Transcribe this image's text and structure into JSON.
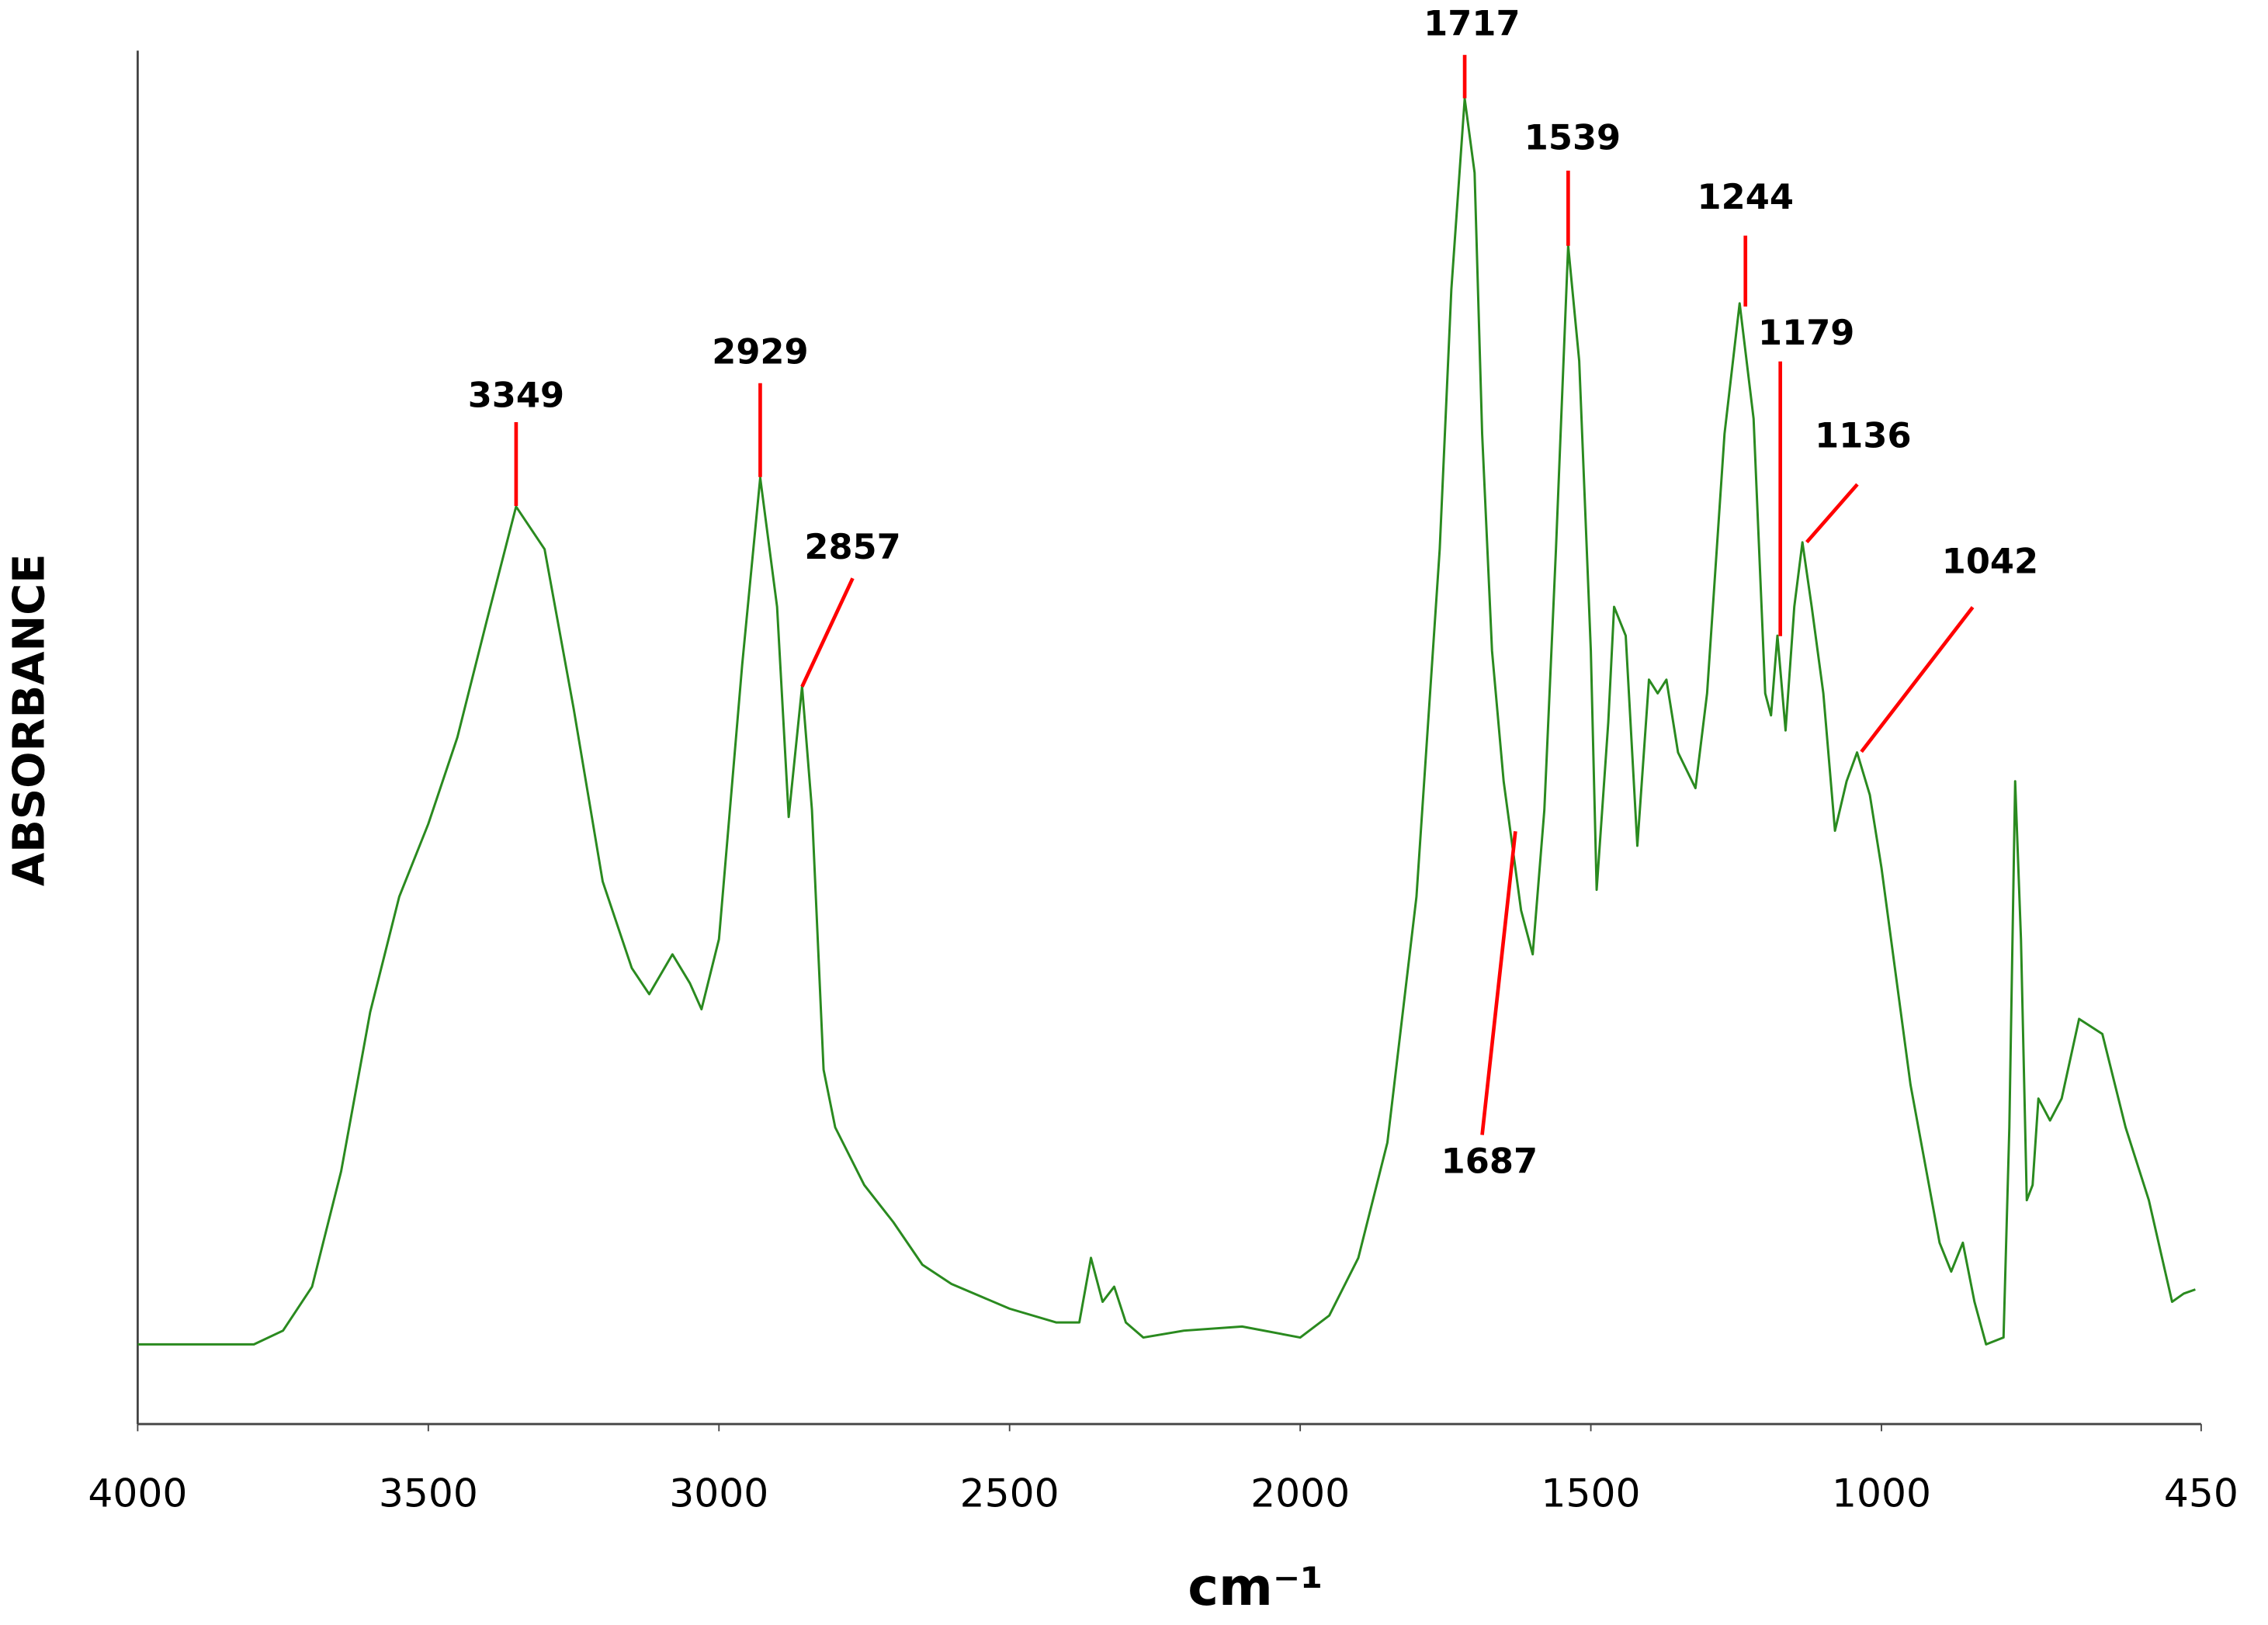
{
  "chart_data": {
    "type": "line",
    "x_label": "cm⁻¹",
    "y_label": "ABSORBANCE",
    "xlim": [
      4000,
      450
    ],
    "xticks": [
      4000,
      3500,
      3000,
      2500,
      2000,
      1500,
      1000,
      450
    ],
    "ylim": [
      0,
      1
    ],
    "color": "#2a8a1f",
    "annotation_color": "#ff0000",
    "x": [
      4000,
      3800,
      3750,
      3700,
      3650,
      3600,
      3550,
      3500,
      3450,
      3400,
      3349,
      3300,
      3250,
      3200,
      3150,
      3120,
      3080,
      3050,
      3030,
      3000,
      2960,
      2929,
      2900,
      2880,
      2857,
      2840,
      2820,
      2800,
      2750,
      2700,
      2650,
      2600,
      2500,
      2420,
      2380,
      2360,
      2340,
      2320,
      2300,
      2270,
      2200,
      2100,
      2000,
      1950,
      1900,
      1850,
      1800,
      1760,
      1740,
      1717,
      1700,
      1687,
      1670,
      1650,
      1620,
      1600,
      1580,
      1560,
      1539,
      1520,
      1500,
      1490,
      1470,
      1460,
      1440,
      1420,
      1400,
      1385,
      1370,
      1350,
      1320,
      1300,
      1270,
      1244,
      1220,
      1200,
      1190,
      1179,
      1165,
      1150,
      1136,
      1120,
      1100,
      1080,
      1060,
      1042,
      1020,
      1000,
      950,
      900,
      880,
      860,
      840,
      820,
      790,
      780,
      770,
      760,
      750,
      740,
      730,
      710,
      690,
      660,
      620,
      580,
      540,
      500,
      480,
      460
    ],
    "values": [
      0.058,
      0.058,
      0.068,
      0.1,
      0.184,
      0.3,
      0.384,
      0.437,
      0.5,
      0.584,
      0.668,
      0.637,
      0.521,
      0.395,
      0.332,
      0.313,
      0.342,
      0.321,
      0.302,
      0.353,
      0.553,
      0.689,
      0.595,
      0.442,
      0.537,
      0.447,
      0.258,
      0.216,
      0.174,
      0.147,
      0.116,
      0.102,
      0.084,
      0.074,
      0.074,
      0.121,
      0.089,
      0.1,
      0.074,
      0.063,
      0.068,
      0.071,
      0.063,
      0.079,
      0.121,
      0.205,
      0.384,
      0.637,
      0.826,
      0.965,
      0.911,
      0.721,
      0.563,
      0.468,
      0.374,
      0.342,
      0.447,
      0.637,
      0.858,
      0.774,
      0.563,
      0.389,
      0.511,
      0.595,
      0.574,
      0.421,
      0.542,
      0.532,
      0.542,
      0.489,
      0.463,
      0.532,
      0.721,
      0.816,
      0.732,
      0.532,
      0.516,
      0.574,
      0.505,
      0.595,
      0.642,
      0.595,
      0.532,
      0.432,
      0.468,
      0.489,
      0.458,
      0.405,
      0.247,
      0.132,
      0.111,
      0.132,
      0.089,
      0.058,
      0.063,
      0.216,
      0.468,
      0.353,
      0.163,
      0.174,
      0.237,
      0.221,
      0.237,
      0.295,
      0.284,
      0.216,
      0.163,
      0.089,
      0.095,
      0.098
    ],
    "annotations": [
      {
        "label": "3349",
        "x": 3349
      },
      {
        "label": "2929",
        "x": 2929
      },
      {
        "label": "2857",
        "x": 2857
      },
      {
        "label": "1717",
        "x": 1717
      },
      {
        "label": "1539",
        "x": 1539
      },
      {
        "label": "1244",
        "x": 1244
      },
      {
        "label": "1179",
        "x": 1179
      },
      {
        "label": "1136",
        "x": 1136
      },
      {
        "label": "1042",
        "x": 1042
      },
      {
        "label": "1687",
        "x": 1687
      }
    ]
  }
}
